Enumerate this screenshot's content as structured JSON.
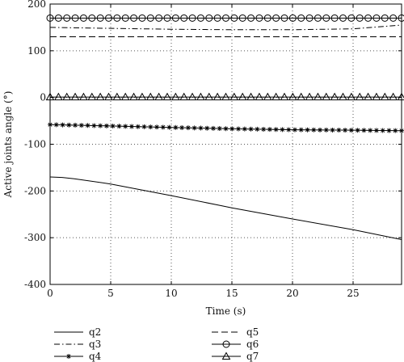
{
  "chart_data": {
    "type": "line",
    "xlabel": "Time (s)",
    "ylabel": "Active joints angle (°)",
    "xlim": [
      0,
      29
    ],
    "ylim": [
      -400,
      200
    ],
    "xticks": [
      0,
      5,
      10,
      15,
      20,
      25
    ],
    "yticks": [
      200,
      100,
      0,
      -100,
      -200,
      -300,
      -400
    ],
    "grid": true,
    "legend_position": "bottom, below plot",
    "series": [
      {
        "name": "q2",
        "marker": "none",
        "dash": "solid",
        "x": [
          0,
          1,
          2,
          5,
          10,
          15,
          20,
          25,
          29
        ],
        "y": [
          -170,
          -171,
          -174,
          -185,
          -210,
          -236,
          -260,
          -283,
          -304
        ]
      },
      {
        "name": "q3",
        "marker": "none",
        "dash": "dashdot",
        "x": [
          0,
          5,
          10,
          15,
          20,
          25,
          29
        ],
        "y": [
          150,
          148,
          146,
          145,
          145,
          147,
          155
        ]
      },
      {
        "name": "q4",
        "marker": "star",
        "dash": "solid",
        "x": [
          0,
          5,
          10,
          15,
          20,
          25,
          29
        ],
        "y": [
          -58,
          -61,
          -64,
          -67,
          -69,
          -70,
          -71
        ]
      },
      {
        "name": "q5",
        "marker": "none",
        "dash": "dashed",
        "x": [
          0,
          29
        ],
        "y": [
          130,
          130
        ]
      },
      {
        "name": "q6",
        "marker": "circle",
        "dash": "solid",
        "x": [
          0,
          29
        ],
        "y": [
          170,
          170
        ]
      },
      {
        "name": "q7",
        "marker": "triangle",
        "dash": "solid",
        "x": [
          0,
          29
        ],
        "y": [
          1,
          1
        ]
      }
    ]
  }
}
